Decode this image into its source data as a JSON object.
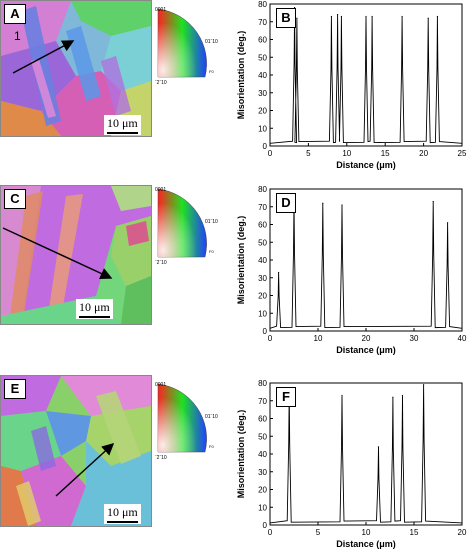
{
  "figure": {
    "rows": [
      {
        "map_label": "A",
        "chart_label": "B",
        "scale_bar": "10 μm",
        "inset_number": "1",
        "ipf_labels": [
          "0001",
          "01ˉ10",
          "ˉ2ˉ10",
          "F0"
        ]
      },
      {
        "map_label": "C",
        "chart_label": "D",
        "scale_bar": "10 μm",
        "ipf_labels": [
          "0001",
          "01ˉ10",
          "ˉ2ˉ10",
          "F0"
        ]
      },
      {
        "map_label": "E",
        "chart_label": "F",
        "scale_bar": "10 μm",
        "ipf_labels": [
          "0001",
          "01ˉ10",
          "ˉ2ˉ10",
          "F0"
        ]
      }
    ]
  },
  "chart_data": [
    {
      "type": "line",
      "xlabel": "Distance (μm)",
      "ylabel": "Misorientation (deg.)",
      "xlim": [
        0,
        25
      ],
      "ylim": [
        0,
        80
      ],
      "xticks": [
        0,
        5,
        10,
        15,
        20,
        25
      ],
      "yticks": [
        0,
        10,
        20,
        30,
        40,
        50,
        60,
        70,
        80
      ],
      "peaks": [
        {
          "x": 3.2,
          "y": 78
        },
        {
          "x": 3.5,
          "y": 72
        },
        {
          "x": 8.0,
          "y": 73
        },
        {
          "x": 8.8,
          "y": 74
        },
        {
          "x": 9.3,
          "y": 73
        },
        {
          "x": 12.5,
          "y": 73
        },
        {
          "x": 13.3,
          "y": 73
        },
        {
          "x": 17.2,
          "y": 73
        },
        {
          "x": 20.6,
          "y": 72
        },
        {
          "x": 21.8,
          "y": 73
        }
      ],
      "baseline": 1.5
    },
    {
      "type": "line",
      "xlabel": "Distance (μm)",
      "ylabel": "Misorientation (deg.)",
      "xlim": [
        0,
        40
      ],
      "ylim": [
        0,
        80
      ],
      "xticks": [
        0,
        10,
        20,
        30,
        40
      ],
      "yticks": [
        0,
        10,
        20,
        30,
        40,
        50,
        60,
        70,
        80
      ],
      "peaks": [
        {
          "x": 1.8,
          "y": 33
        },
        {
          "x": 5.0,
          "y": 74
        },
        {
          "x": 11.0,
          "y": 72
        },
        {
          "x": 15.0,
          "y": 71
        },
        {
          "x": 34.0,
          "y": 73
        },
        {
          "x": 37.0,
          "y": 61
        }
      ],
      "baseline": 1.5
    },
    {
      "type": "line",
      "xlabel": "Distance (μm)",
      "ylabel": "Misorientation (deg.)",
      "xlim": [
        0,
        20
      ],
      "ylim": [
        0,
        80
      ],
      "xticks": [
        0,
        5,
        10,
        15,
        20
      ],
      "yticks": [
        0,
        10,
        20,
        30,
        40,
        50,
        60,
        70,
        80
      ],
      "peaks": [
        {
          "x": 2.0,
          "y": 76
        },
        {
          "x": 7.5,
          "y": 73
        },
        {
          "x": 11.3,
          "y": 44
        },
        {
          "x": 12.8,
          "y": 72
        },
        {
          "x": 13.8,
          "y": 73
        },
        {
          "x": 16.0,
          "y": 79
        }
      ],
      "baseline": 1.2
    }
  ]
}
